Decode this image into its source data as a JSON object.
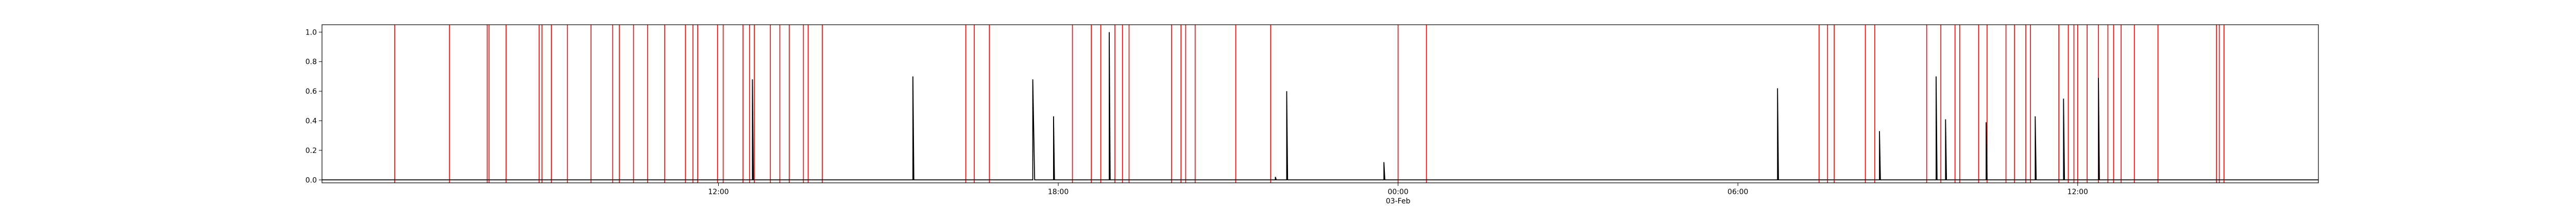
{
  "chart_data": {
    "type": "line",
    "title": "",
    "xlabel": "",
    "ylabel": "",
    "x_unit": "datetime",
    "xlim": [
      "2020-02-02 05:00",
      "2020-02-03 16:15"
    ],
    "ylim": [
      -0.02,
      1.05
    ],
    "grid": false,
    "legend": "none",
    "colors": {
      "series": "#000000",
      "events": "#ff0000",
      "axes": "#000000"
    },
    "yticks": [
      0.0,
      0.2,
      0.4,
      0.6,
      0.8,
      1.0
    ],
    "ytick_labels": [
      "0.0",
      "0.2",
      "0.4",
      "0.6",
      "0.8",
      "1.0"
    ],
    "xticks": [
      "2020-02-02 12:00",
      "2020-02-02 18:00",
      "2020-02-03 00:00",
      "2020-02-03 06:00",
      "2020-02-03 12:00"
    ],
    "xtick_labels": [
      "12:00",
      "18:00",
      "00:00",
      "06:00",
      "12:00"
    ],
    "xtick_sublabels": [
      "",
      "",
      "03-Feb",
      "",
      ""
    ],
    "series": [
      {
        "values": [
          {
            "x": "2020-02-02 05:00",
            "y": 0.0
          },
          {
            "x": "2020-02-02 12:36",
            "y": 0.0
          },
          {
            "x": "2020-02-02 12:36",
            "y": 0.68
          },
          {
            "x": "2020-02-02 12:37",
            "y": 0.0
          },
          {
            "x": "2020-02-02 15:26",
            "y": 0.0
          },
          {
            "x": "2020-02-02 15:26",
            "y": 0.7
          },
          {
            "x": "2020-02-02 15:27",
            "y": 0.0
          },
          {
            "x": "2020-02-02 17:33",
            "y": 0.0
          },
          {
            "x": "2020-02-02 17:33",
            "y": 0.68
          },
          {
            "x": "2020-02-02 17:35",
            "y": 0.0
          },
          {
            "x": "2020-02-02 17:55",
            "y": 0.0
          },
          {
            "x": "2020-02-02 17:55",
            "y": 0.43
          },
          {
            "x": "2020-02-02 17:56",
            "y": 0.0
          },
          {
            "x": "2020-02-02 18:54",
            "y": 0.0
          },
          {
            "x": "2020-02-02 18:54",
            "y": 1.0
          },
          {
            "x": "2020-02-02 18:55",
            "y": 0.0
          },
          {
            "x": "2020-02-02 21:50",
            "y": 0.0
          },
          {
            "x": "2020-02-02 21:50",
            "y": 0.02
          },
          {
            "x": "2020-02-02 21:51",
            "y": 0.0
          },
          {
            "x": "2020-02-02 22:02",
            "y": 0.0
          },
          {
            "x": "2020-02-02 22:02",
            "y": 0.6
          },
          {
            "x": "2020-02-02 22:03",
            "y": 0.0
          },
          {
            "x": "2020-02-02 23:45",
            "y": 0.0
          },
          {
            "x": "2020-02-02 23:45",
            "y": 0.12
          },
          {
            "x": "2020-02-02 23:46",
            "y": 0.0
          },
          {
            "x": "2020-02-03 06:42",
            "y": 0.0
          },
          {
            "x": "2020-02-03 06:42",
            "y": 0.62
          },
          {
            "x": "2020-02-03 06:43",
            "y": 0.0
          },
          {
            "x": "2020-02-03 08:30",
            "y": 0.0
          },
          {
            "x": "2020-02-03 08:30",
            "y": 0.33
          },
          {
            "x": "2020-02-03 08:31",
            "y": 0.0
          },
          {
            "x": "2020-02-03 09:30",
            "y": 0.0
          },
          {
            "x": "2020-02-03 09:30",
            "y": 0.7
          },
          {
            "x": "2020-02-03 09:31",
            "y": 0.0
          },
          {
            "x": "2020-02-03 09:40",
            "y": 0.0
          },
          {
            "x": "2020-02-03 09:40",
            "y": 0.41
          },
          {
            "x": "2020-02-03 09:41",
            "y": 0.0
          },
          {
            "x": "2020-02-03 10:23",
            "y": 0.0
          },
          {
            "x": "2020-02-03 10:23",
            "y": 0.39
          },
          {
            "x": "2020-02-03 10:24",
            "y": 0.0
          },
          {
            "x": "2020-02-03 11:15",
            "y": 0.0
          },
          {
            "x": "2020-02-03 11:15",
            "y": 0.43
          },
          {
            "x": "2020-02-03 11:16",
            "y": 0.0
          },
          {
            "x": "2020-02-03 11:45",
            "y": 0.0
          },
          {
            "x": "2020-02-03 11:45",
            "y": 0.55
          },
          {
            "x": "2020-02-03 11:46",
            "y": 0.0
          },
          {
            "x": "2020-02-03 12:22",
            "y": 0.0
          },
          {
            "x": "2020-02-03 12:22",
            "y": 0.69
          },
          {
            "x": "2020-02-03 12:23",
            "y": 0.0
          },
          {
            "x": "2020-02-03 16:15",
            "y": 0.0
          }
        ]
      }
    ],
    "events": [
      "2020-02-02 06:17",
      "2020-02-02 07:15",
      "2020-02-02 07:55",
      "2020-02-02 07:57",
      "2020-02-02 08:15",
      "2020-02-02 08:50",
      "2020-02-02 08:53",
      "2020-02-02 09:03",
      "2020-02-02 09:20",
      "2020-02-02 09:45",
      "2020-02-02 10:08",
      "2020-02-02 10:15",
      "2020-02-02 10:30",
      "2020-02-02 10:45",
      "2020-02-02 11:03",
      "2020-02-02 11:25",
      "2020-02-02 11:33",
      "2020-02-02 11:38",
      "2020-02-02 11:59",
      "2020-02-02 12:05",
      "2020-02-02 12:26",
      "2020-02-02 12:33",
      "2020-02-02 12:38",
      "2020-02-02 12:55",
      "2020-02-02 13:05",
      "2020-02-02 13:15",
      "2020-02-02 13:30",
      "2020-02-02 13:35",
      "2020-02-02 13:50",
      "2020-02-02 16:22",
      "2020-02-02 16:31",
      "2020-02-02 16:47",
      "2020-02-02 18:15",
      "2020-02-02 18:35",
      "2020-02-02 18:45",
      "2020-02-02 19:00",
      "2020-02-02 19:08",
      "2020-02-02 19:15",
      "2020-02-02 20:00",
      "2020-02-02 20:10",
      "2020-02-02 20:15",
      "2020-02-02 20:25",
      "2020-02-02 21:08",
      "2020-02-02 21:45",
      "2020-02-03 00:00",
      "2020-02-03 00:30",
      "2020-02-03 07:26",
      "2020-02-03 07:35",
      "2020-02-03 07:42",
      "2020-02-03 08:15",
      "2020-02-03 08:25",
      "2020-02-03 09:20",
      "2020-02-03 09:35",
      "2020-02-03 09:50",
      "2020-02-03 09:55",
      "2020-02-03 10:15",
      "2020-02-03 10:24",
      "2020-02-03 10:44",
      "2020-02-03 10:53",
      "2020-02-03 11:05",
      "2020-02-03 11:10",
      "2020-02-03 11:40",
      "2020-02-03 11:50",
      "2020-02-03 11:56",
      "2020-02-03 12:00",
      "2020-02-03 12:10",
      "2020-02-03 12:22",
      "2020-02-03 12:32",
      "2020-02-03 12:38",
      "2020-02-03 12:46",
      "2020-02-03 13:00",
      "2020-02-03 13:25",
      "2020-02-03 14:27",
      "2020-02-03 14:30",
      "2020-02-03 14:35"
    ]
  }
}
